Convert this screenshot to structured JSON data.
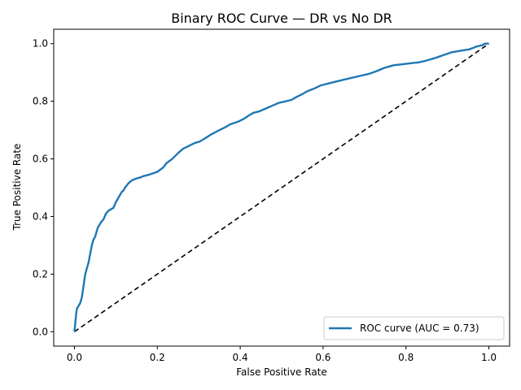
{
  "chart_data": {
    "type": "line",
    "title": "Binary ROC Curve — DR vs No DR",
    "xlabel": "False Positive Rate",
    "ylabel": "True Positive Rate",
    "xlim": [
      -0.05,
      1.05
    ],
    "ylim": [
      -0.05,
      1.05
    ],
    "xticks": [
      0.0,
      0.2,
      0.4,
      0.6,
      0.8,
      1.0
    ],
    "yticks": [
      0.0,
      0.2,
      0.4,
      0.6,
      0.8,
      1.0
    ],
    "xtick_labels": [
      "0.0",
      "0.2",
      "0.4",
      "0.6",
      "0.8",
      "1.0"
    ],
    "ytick_labels": [
      "0.0",
      "0.2",
      "0.4",
      "0.6",
      "0.8",
      "1.0"
    ],
    "grid": false,
    "legend": {
      "placement": "lower-right",
      "entries": [
        "ROC curve (AUC = 0.73)"
      ]
    },
    "series": [
      {
        "name": "ROC curve (AUC = 0.73)",
        "color": "#1f77b4",
        "style": "solid",
        "x": [
          0.0,
          0.002,
          0.004,
          0.006,
          0.01,
          0.014,
          0.018,
          0.022,
          0.026,
          0.03,
          0.034,
          0.038,
          0.042,
          0.046,
          0.05,
          0.056,
          0.06,
          0.064,
          0.07,
          0.076,
          0.082,
          0.088,
          0.094,
          0.1,
          0.108,
          0.114,
          0.118,
          0.122,
          0.13,
          0.138,
          0.146,
          0.152,
          0.158,
          0.166,
          0.18,
          0.2,
          0.214,
          0.222,
          0.236,
          0.25,
          0.262,
          0.276,
          0.29,
          0.302,
          0.316,
          0.33,
          0.35,
          0.364,
          0.376,
          0.386,
          0.396,
          0.41,
          0.42,
          0.432,
          0.446,
          0.462,
          0.478,
          0.494,
          0.51,
          0.524,
          0.536,
          0.55,
          0.562,
          0.58,
          0.594,
          0.608,
          0.622,
          0.636,
          0.65,
          0.68,
          0.71,
          0.73,
          0.746,
          0.758,
          0.77,
          0.8,
          0.83,
          0.846,
          0.858,
          0.87,
          0.88,
          0.89,
          0.9,
          0.91,
          0.918,
          0.93,
          0.952,
          0.962,
          0.97,
          0.985,
          0.99,
          1.0
        ],
        "y": [
          0.0,
          0.03,
          0.06,
          0.08,
          0.09,
          0.1,
          0.12,
          0.16,
          0.2,
          0.22,
          0.24,
          0.27,
          0.3,
          0.32,
          0.33,
          0.36,
          0.37,
          0.38,
          0.39,
          0.41,
          0.42,
          0.425,
          0.43,
          0.45,
          0.47,
          0.485,
          0.49,
          0.5,
          0.515,
          0.525,
          0.53,
          0.533,
          0.535,
          0.54,
          0.545,
          0.555,
          0.57,
          0.585,
          0.6,
          0.62,
          0.635,
          0.645,
          0.655,
          0.66,
          0.672,
          0.685,
          0.7,
          0.71,
          0.72,
          0.725,
          0.73,
          0.74,
          0.75,
          0.76,
          0.765,
          0.775,
          0.785,
          0.795,
          0.8,
          0.805,
          0.815,
          0.825,
          0.835,
          0.845,
          0.855,
          0.86,
          0.865,
          0.87,
          0.875,
          0.885,
          0.895,
          0.905,
          0.915,
          0.92,
          0.925,
          0.93,
          0.935,
          0.94,
          0.945,
          0.95,
          0.955,
          0.96,
          0.965,
          0.97,
          0.972,
          0.975,
          0.98,
          0.985,
          0.99,
          0.995,
          1.0,
          1.0
        ]
      },
      {
        "color": "#000000",
        "style": "dashed",
        "x": [
          0.0,
          1.0
        ],
        "y": [
          0.0,
          1.0
        ]
      }
    ]
  }
}
